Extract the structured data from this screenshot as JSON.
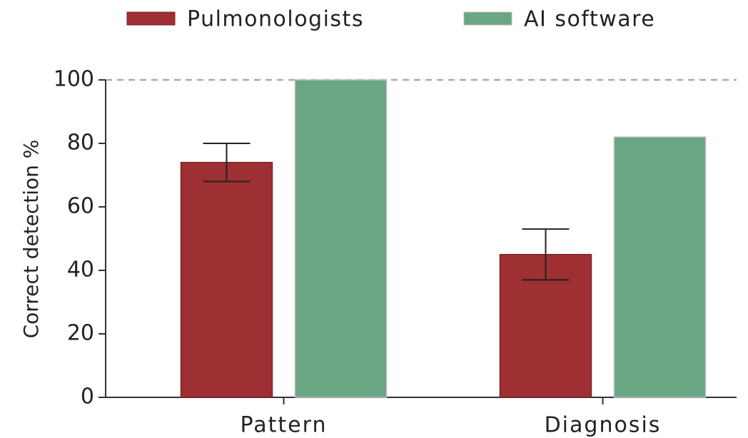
{
  "chart_data": {
    "type": "bar",
    "y_label": "Correct detection %",
    "categories": [
      "Pattern",
      "Diagnosis"
    ],
    "series": [
      {
        "name": "Pulmonologists",
        "color": "#9e2f33",
        "values": [
          74,
          45
        ],
        "errors": [
          6,
          8
        ]
      },
      {
        "name": "AI software",
        "color": "#6aa584",
        "values": [
          100,
          82
        ]
      }
    ],
    "ylim": [
      0,
      100
    ],
    "yticks": [
      0,
      20,
      40,
      60,
      80,
      100
    ],
    "reference_line": 100,
    "legend": "top"
  }
}
